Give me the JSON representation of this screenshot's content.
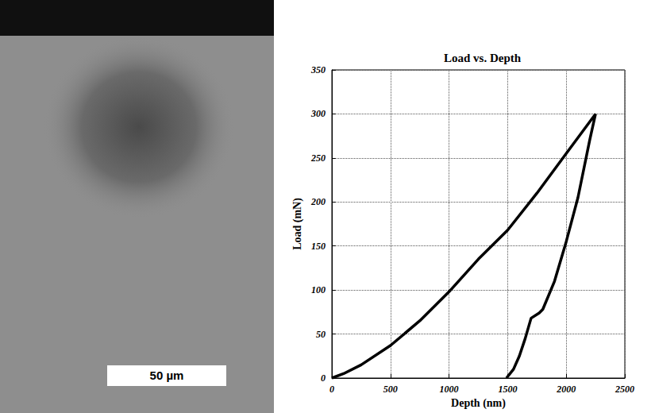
{
  "image": {
    "scale_bar": "50 µm"
  },
  "chart_data": {
    "type": "line",
    "title": "Load vs. Depth",
    "x_label": "Depth (nm)",
    "y_label": "Load (mN)",
    "x": [
      0,
      100,
      250,
      500,
      750,
      1000,
      1250,
      1500,
      1750,
      2000,
      2250,
      2200,
      2100,
      2000,
      1900,
      1800,
      1770,
      1700,
      1650,
      1600,
      1550,
      1490
    ],
    "values": [
      0,
      5,
      15,
      37,
      65,
      98,
      135,
      168,
      210,
      255,
      300,
      270,
      205,
      155,
      110,
      78,
      74,
      68,
      45,
      25,
      10,
      0
    ],
    "color": "#000000",
    "xlim": [
      0,
      2500
    ],
    "xticks": [
      0,
      500,
      1000,
      1500,
      2000,
      2500
    ],
    "ylim": [
      0,
      350
    ],
    "yticks": [
      0,
      50,
      100,
      150,
      200,
      250,
      300,
      350
    ],
    "grid": true
  }
}
